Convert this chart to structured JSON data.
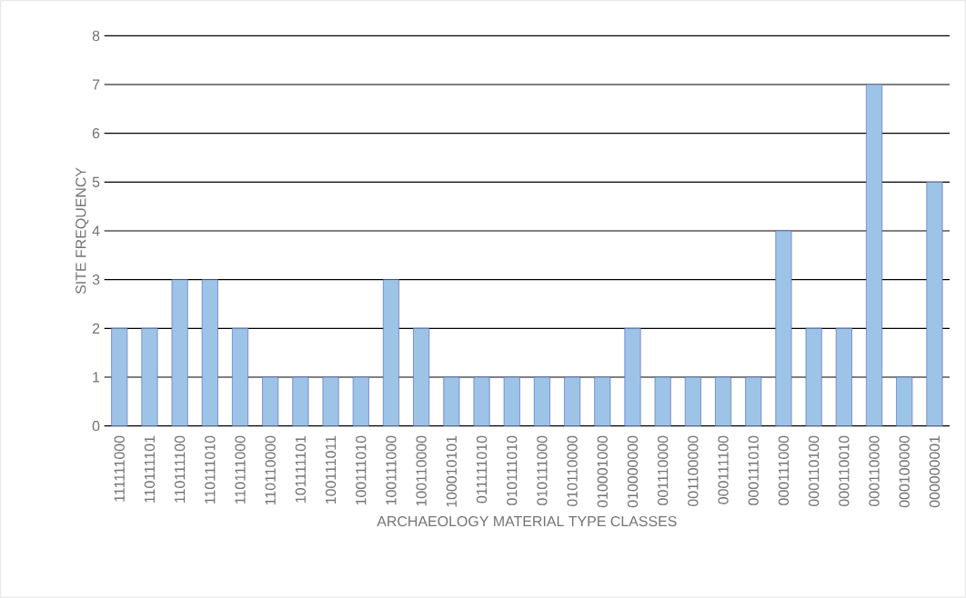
{
  "chart_data": {
    "type": "bar",
    "xlabel": "ARCHAEOLOGY MATERIAL TYPE CLASSES",
    "ylabel": "SITE FREQUENCY",
    "categories": [
      "111111000",
      "110111101",
      "110111100",
      "110111010",
      "110111000",
      "110110000",
      "101111101",
      "100111011",
      "100111010",
      "100111000",
      "100110000",
      "100010101",
      "011111010",
      "010111010",
      "010111000",
      "010110000",
      "010001000",
      "010000000",
      "001110000",
      "001100000",
      "000111100",
      "000111010",
      "000111000",
      "000110100",
      "000110010",
      "000110000",
      "000100000",
      "000000001"
    ],
    "values": [
      2,
      2,
      3,
      3,
      2,
      1,
      1,
      1,
      1,
      3,
      2,
      1,
      1,
      1,
      1,
      1,
      1,
      2,
      1,
      1,
      1,
      1,
      4,
      2,
      2,
      7,
      1,
      5
    ],
    "color": "#9dc3e6",
    "ylim": [
      0,
      8
    ],
    "yticks": [
      0,
      1,
      2,
      3,
      4,
      5,
      6,
      7,
      8
    ],
    "grid": "y"
  }
}
